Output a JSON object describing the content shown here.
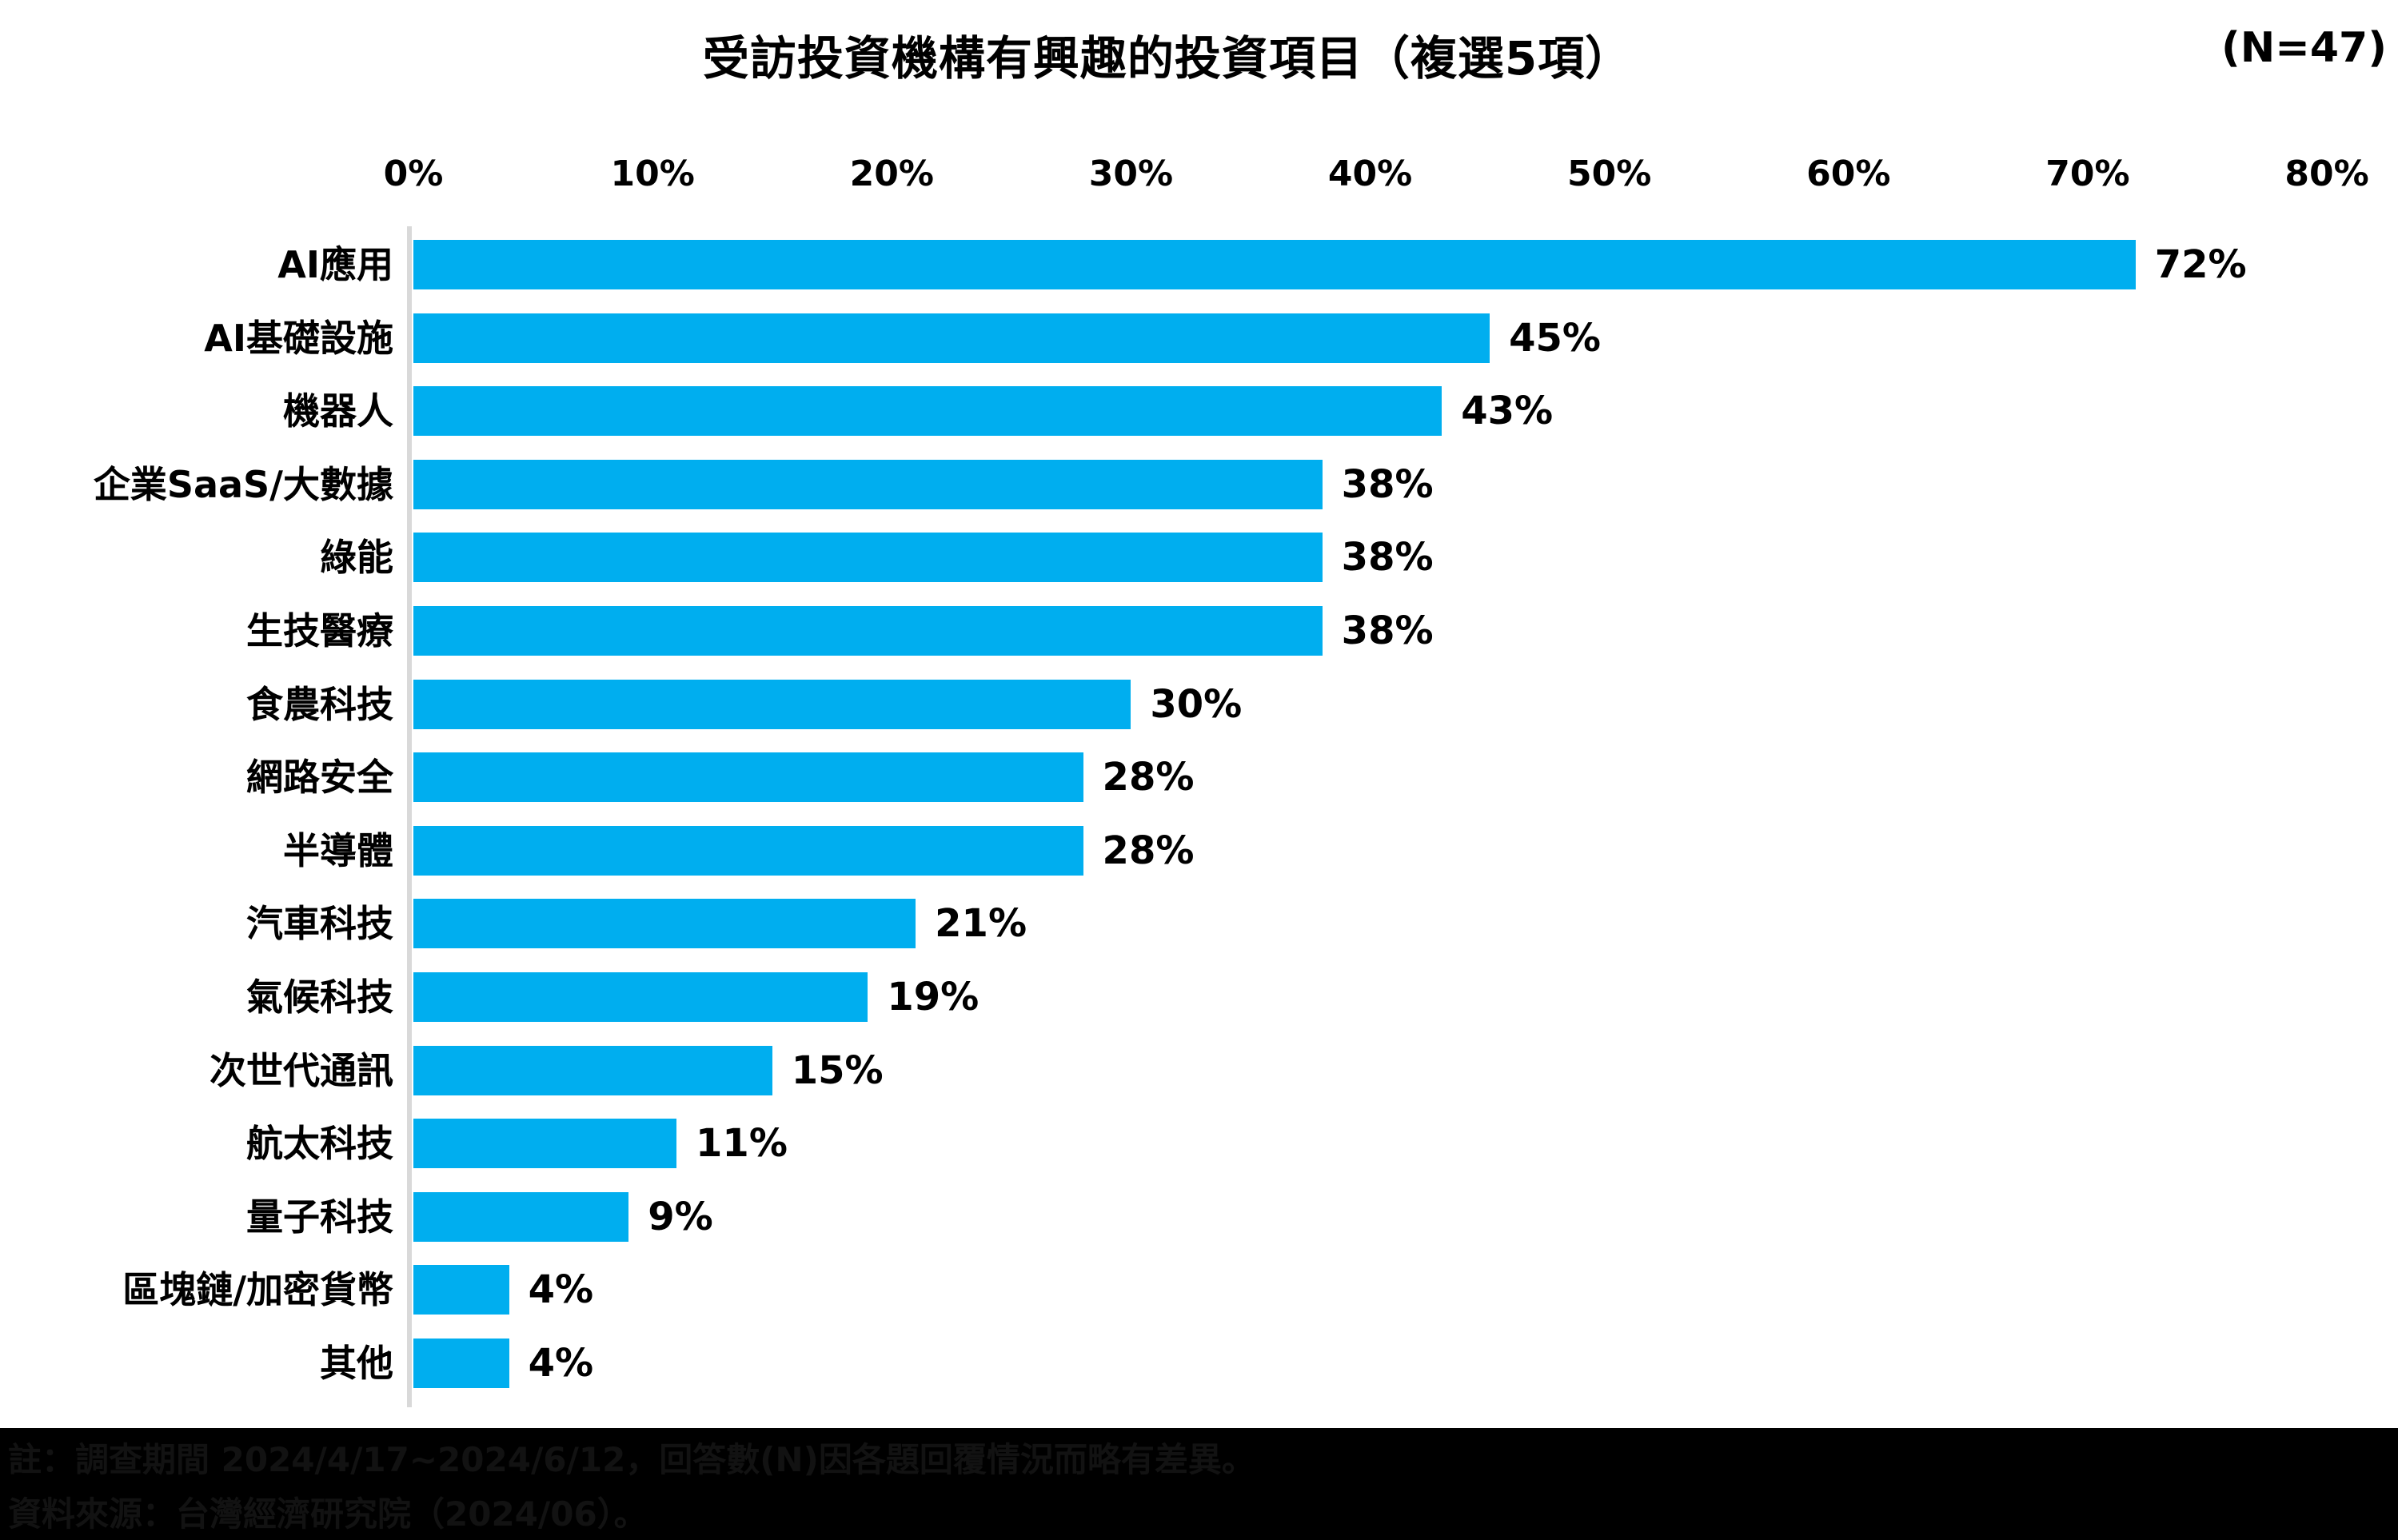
{
  "header": {
    "title": "受訪投資機構有興趣的投資項目（複選5項）",
    "sample_label": "(N=47)"
  },
  "chart_data": {
    "type": "bar",
    "orientation": "horizontal",
    "title": "受訪投資機構有興趣的投資項目（複選5項）",
    "sample_size": "(N=47)",
    "categories": [
      "AI應用",
      "AI基礎設施",
      "機器人",
      "企業SaaS/大數據",
      "綠能",
      "生技醫療",
      "食農科技",
      "網路安全",
      "半導體",
      "汽車科技",
      "氣候科技",
      "次世代通訊",
      "航太科技",
      "量子科技",
      "區塊鏈/加密貨幣",
      "其他"
    ],
    "values": [
      72,
      45,
      43,
      38,
      38,
      38,
      30,
      28,
      28,
      21,
      19,
      15,
      11,
      9,
      4,
      4
    ],
    "value_suffix": "%",
    "x_ticks": [
      "0%",
      "10%",
      "20%",
      "30%",
      "40%",
      "50%",
      "60%",
      "70%",
      "80%"
    ],
    "xlim": [
      0,
      80
    ],
    "grid": false,
    "legend": "none",
    "bar_color": "#00AEEF",
    "axis_line_color": "#d9d9d9",
    "label_color": "#000000"
  },
  "footer": {
    "note_line1": "註：調查期間 2024/4/17~2024/6/12，回答數(N)因各題回覆情況而略有差異。",
    "note_line2": "資料來源：台灣經濟研究院（2024/06）。",
    "background": "#000000",
    "text_color": "#121212"
  }
}
